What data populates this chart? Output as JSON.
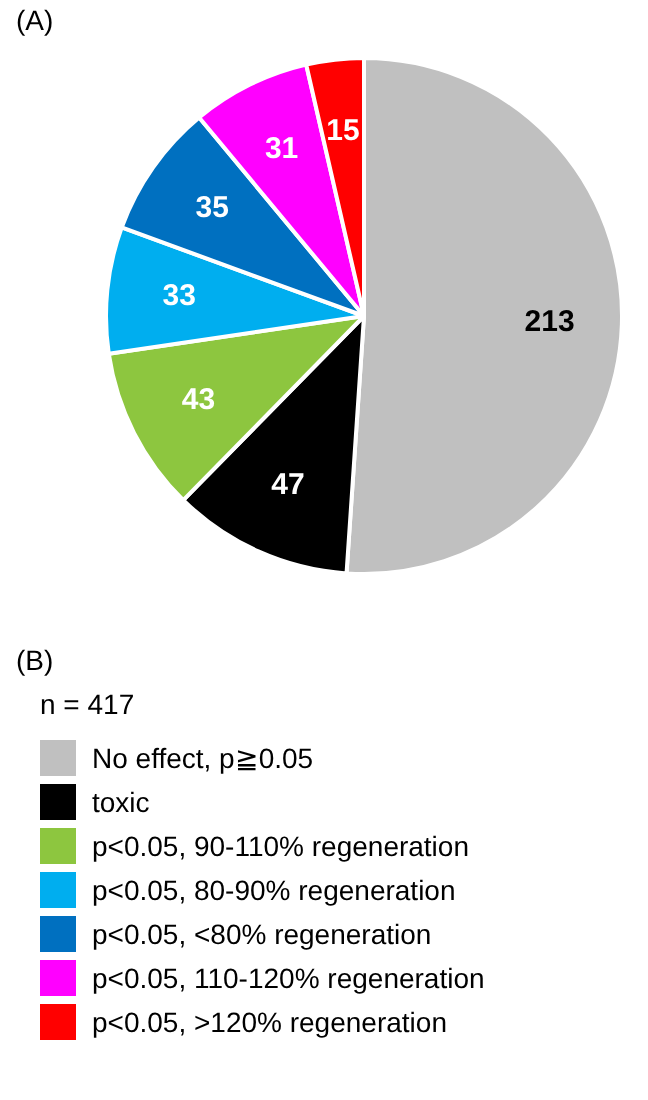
{
  "chart_data": {
    "type": "pie",
    "legend_title": "n = 417",
    "annotations": [
      "(A)",
      "(B)"
    ],
    "categories": [
      "No effect, p≧0.05",
      "toxic",
      "p<0.05, 90-110% regeneration",
      "p<0.05, 80-90% regeneration",
      "p<0.05, <80% regeneration",
      "p<0.05, 110-120% regeneration",
      "p<0.05, >120% regeneration"
    ],
    "values": [
      213,
      47,
      43,
      33,
      35,
      31,
      15
    ],
    "colors": [
      "#c0c0c0",
      "#000000",
      "#8dc63f",
      "#00aeef",
      "#0070c0",
      "#ff00ff",
      "#ff0000"
    ],
    "data_labels": true,
    "legend": "bottom"
  }
}
